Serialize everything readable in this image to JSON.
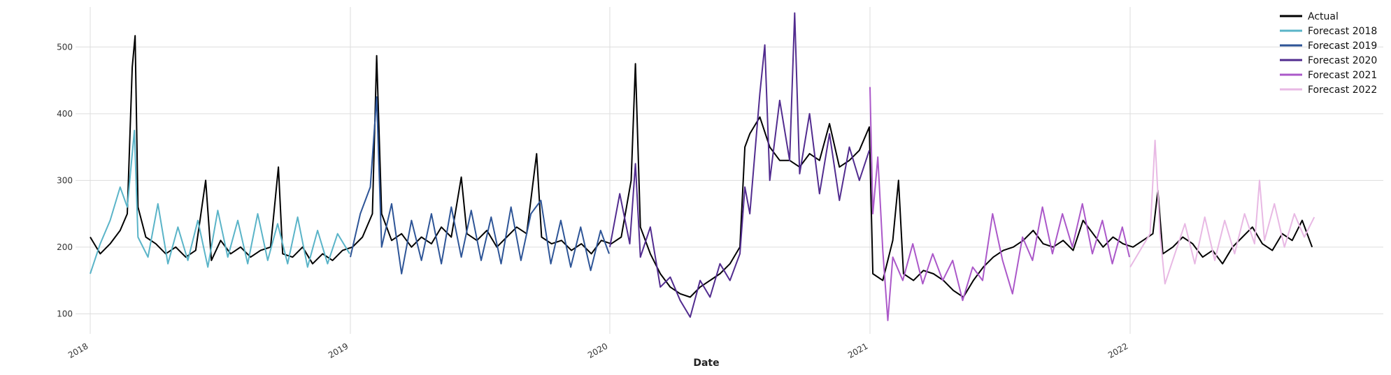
{
  "chart_data": {
    "type": "line",
    "title": "",
    "xlabel": "Date",
    "ylabel": "",
    "x_ticks": [
      "2018",
      "2019",
      "2020",
      "2021",
      "2022"
    ],
    "y_ticks": [
      100,
      200,
      300,
      400,
      500
    ],
    "xlim": [
      "2018-01-01",
      "2022-12-31"
    ],
    "ylim": [
      70,
      560
    ],
    "grid": true,
    "legend_position": "top-right",
    "series": [
      {
        "name": "Actual",
        "color": "#000000",
        "points": [
          [
            "2018-01-01",
            215
          ],
          [
            "2018-01-15",
            190
          ],
          [
            "2018-01-29",
            205
          ],
          [
            "2018-02-12",
            225
          ],
          [
            "2018-02-22",
            250
          ],
          [
            "2018-03-01",
            470
          ],
          [
            "2018-03-05",
            517
          ],
          [
            "2018-03-09",
            260
          ],
          [
            "2018-03-20",
            215
          ],
          [
            "2018-04-03",
            205
          ],
          [
            "2018-04-17",
            190
          ],
          [
            "2018-05-01",
            200
          ],
          [
            "2018-05-15",
            185
          ],
          [
            "2018-05-29",
            195
          ],
          [
            "2018-06-12",
            300
          ],
          [
            "2018-06-20",
            180
          ],
          [
            "2018-07-03",
            210
          ],
          [
            "2018-07-17",
            190
          ],
          [
            "2018-07-31",
            200
          ],
          [
            "2018-08-14",
            185
          ],
          [
            "2018-08-28",
            195
          ],
          [
            "2018-09-11",
            200
          ],
          [
            "2018-09-22",
            320
          ],
          [
            "2018-09-28",
            190
          ],
          [
            "2018-10-12",
            185
          ],
          [
            "2018-10-26",
            200
          ],
          [
            "2018-11-09",
            175
          ],
          [
            "2018-11-23",
            190
          ],
          [
            "2018-12-07",
            180
          ],
          [
            "2018-12-21",
            195
          ],
          [
            "2019-01-04",
            200
          ],
          [
            "2019-01-18",
            215
          ],
          [
            "2019-02-01",
            250
          ],
          [
            "2019-02-07",
            487
          ],
          [
            "2019-02-14",
            250
          ],
          [
            "2019-02-28",
            210
          ],
          [
            "2019-03-14",
            220
          ],
          [
            "2019-03-28",
            200
          ],
          [
            "2019-04-11",
            215
          ],
          [
            "2019-04-25",
            205
          ],
          [
            "2019-05-09",
            230
          ],
          [
            "2019-05-23",
            215
          ],
          [
            "2019-06-06",
            305
          ],
          [
            "2019-06-14",
            220
          ],
          [
            "2019-06-28",
            210
          ],
          [
            "2019-07-12",
            225
          ],
          [
            "2019-07-26",
            200
          ],
          [
            "2019-08-09",
            215
          ],
          [
            "2019-08-23",
            230
          ],
          [
            "2019-09-06",
            220
          ],
          [
            "2019-09-20",
            340
          ],
          [
            "2019-09-27",
            215
          ],
          [
            "2019-10-11",
            205
          ],
          [
            "2019-10-25",
            210
          ],
          [
            "2019-11-08",
            195
          ],
          [
            "2019-11-22",
            205
          ],
          [
            "2019-12-06",
            190
          ],
          [
            "2019-12-20",
            210
          ],
          [
            "2020-01-03",
            205
          ],
          [
            "2020-01-17",
            215
          ],
          [
            "2020-01-31",
            300
          ],
          [
            "2020-02-06",
            475
          ],
          [
            "2020-02-13",
            230
          ],
          [
            "2020-02-27",
            190
          ],
          [
            "2020-03-12",
            160
          ],
          [
            "2020-03-26",
            140
          ],
          [
            "2020-04-09",
            130
          ],
          [
            "2020-04-23",
            125
          ],
          [
            "2020-05-07",
            140
          ],
          [
            "2020-05-21",
            150
          ],
          [
            "2020-06-04",
            160
          ],
          [
            "2020-06-18",
            175
          ],
          [
            "2020-07-02",
            200
          ],
          [
            "2020-07-09",
            350
          ],
          [
            "2020-07-16",
            370
          ],
          [
            "2020-07-30",
            395
          ],
          [
            "2020-08-13",
            350
          ],
          [
            "2020-08-27",
            330
          ],
          [
            "2020-09-10",
            330
          ],
          [
            "2020-09-24",
            320
          ],
          [
            "2020-10-08",
            340
          ],
          [
            "2020-10-22",
            330
          ],
          [
            "2020-11-05",
            385
          ],
          [
            "2020-11-19",
            320
          ],
          [
            "2020-12-03",
            330
          ],
          [
            "2020-12-17",
            345
          ],
          [
            "2020-12-31",
            380
          ],
          [
            "2021-01-05",
            160
          ],
          [
            "2021-01-19",
            150
          ],
          [
            "2021-02-02",
            210
          ],
          [
            "2021-02-10",
            300
          ],
          [
            "2021-02-17",
            160
          ],
          [
            "2021-03-03",
            150
          ],
          [
            "2021-03-17",
            165
          ],
          [
            "2021-03-31",
            160
          ],
          [
            "2021-04-14",
            150
          ],
          [
            "2021-04-28",
            135
          ],
          [
            "2021-05-12",
            125
          ],
          [
            "2021-05-26",
            150
          ],
          [
            "2021-06-09",
            170
          ],
          [
            "2021-06-23",
            185
          ],
          [
            "2021-07-07",
            195
          ],
          [
            "2021-07-21",
            200
          ],
          [
            "2021-08-04",
            210
          ],
          [
            "2021-08-18",
            225
          ],
          [
            "2021-09-01",
            205
          ],
          [
            "2021-09-15",
            200
          ],
          [
            "2021-09-29",
            210
          ],
          [
            "2021-10-13",
            195
          ],
          [
            "2021-10-27",
            240
          ],
          [
            "2021-11-10",
            220
          ],
          [
            "2021-11-24",
            200
          ],
          [
            "2021-12-08",
            215
          ],
          [
            "2021-12-22",
            205
          ],
          [
            "2022-01-05",
            200
          ],
          [
            "2022-01-19",
            210
          ],
          [
            "2022-02-02",
            220
          ],
          [
            "2022-02-09",
            285
          ],
          [
            "2022-02-16",
            190
          ],
          [
            "2022-03-02",
            200
          ],
          [
            "2022-03-16",
            215
          ],
          [
            "2022-03-30",
            205
          ],
          [
            "2022-04-13",
            185
          ],
          [
            "2022-04-27",
            195
          ],
          [
            "2022-05-11",
            175
          ],
          [
            "2022-05-25",
            200
          ],
          [
            "2022-06-08",
            215
          ],
          [
            "2022-06-22",
            230
          ],
          [
            "2022-07-06",
            205
          ],
          [
            "2022-07-20",
            195
          ],
          [
            "2022-08-03",
            220
          ],
          [
            "2022-08-17",
            210
          ],
          [
            "2022-08-31",
            240
          ],
          [
            "2022-09-14",
            200
          ]
        ]
      },
      {
        "name": "Forecast 2018",
        "color": "#5ab4c8",
        "points": [
          [
            "2018-01-01",
            160
          ],
          [
            "2018-01-15",
            205
          ],
          [
            "2018-01-29",
            240
          ],
          [
            "2018-02-12",
            290
          ],
          [
            "2018-02-22",
            260
          ],
          [
            "2018-03-04",
            375
          ],
          [
            "2018-03-09",
            215
          ],
          [
            "2018-03-23",
            185
          ],
          [
            "2018-04-06",
            265
          ],
          [
            "2018-04-20",
            175
          ],
          [
            "2018-05-04",
            230
          ],
          [
            "2018-05-18",
            180
          ],
          [
            "2018-06-01",
            240
          ],
          [
            "2018-06-15",
            170
          ],
          [
            "2018-06-29",
            255
          ],
          [
            "2018-07-13",
            185
          ],
          [
            "2018-07-27",
            240
          ],
          [
            "2018-08-10",
            175
          ],
          [
            "2018-08-24",
            250
          ],
          [
            "2018-09-07",
            180
          ],
          [
            "2018-09-21",
            235
          ],
          [
            "2018-10-05",
            175
          ],
          [
            "2018-10-19",
            245
          ],
          [
            "2018-11-02",
            170
          ],
          [
            "2018-11-16",
            225
          ],
          [
            "2018-11-30",
            175
          ],
          [
            "2018-12-14",
            220
          ],
          [
            "2018-12-31",
            190
          ]
        ]
      },
      {
        "name": "Forecast 2019",
        "color": "#2e5597",
        "points": [
          [
            "2019-01-01",
            185
          ],
          [
            "2019-01-15",
            250
          ],
          [
            "2019-01-29",
            290
          ],
          [
            "2019-02-07",
            425
          ],
          [
            "2019-02-14",
            200
          ],
          [
            "2019-02-28",
            265
          ],
          [
            "2019-03-14",
            160
          ],
          [
            "2019-03-28",
            240
          ],
          [
            "2019-04-11",
            180
          ],
          [
            "2019-04-25",
            250
          ],
          [
            "2019-05-09",
            175
          ],
          [
            "2019-05-23",
            260
          ],
          [
            "2019-06-06",
            185
          ],
          [
            "2019-06-20",
            255
          ],
          [
            "2019-07-04",
            180
          ],
          [
            "2019-07-18",
            245
          ],
          [
            "2019-08-01",
            175
          ],
          [
            "2019-08-15",
            260
          ],
          [
            "2019-08-29",
            180
          ],
          [
            "2019-09-12",
            250
          ],
          [
            "2019-09-26",
            270
          ],
          [
            "2019-10-10",
            175
          ],
          [
            "2019-10-24",
            240
          ],
          [
            "2019-11-07",
            170
          ],
          [
            "2019-11-21",
            230
          ],
          [
            "2019-12-05",
            165
          ],
          [
            "2019-12-19",
            225
          ],
          [
            "2019-12-31",
            190
          ]
        ]
      },
      {
        "name": "Forecast 2020",
        "color": "#522c8f",
        "points": [
          [
            "2020-01-01",
            200
          ],
          [
            "2020-01-15",
            280
          ],
          [
            "2020-01-29",
            205
          ],
          [
            "2020-02-06",
            325
          ],
          [
            "2020-02-13",
            185
          ],
          [
            "2020-02-27",
            230
          ],
          [
            "2020-03-12",
            140
          ],
          [
            "2020-03-26",
            155
          ],
          [
            "2020-04-09",
            120
          ],
          [
            "2020-04-23",
            95
          ],
          [
            "2020-05-07",
            150
          ],
          [
            "2020-05-21",
            125
          ],
          [
            "2020-06-04",
            175
          ],
          [
            "2020-06-18",
            150
          ],
          [
            "2020-07-02",
            190
          ],
          [
            "2020-07-09",
            290
          ],
          [
            "2020-07-16",
            250
          ],
          [
            "2020-07-30",
            430
          ],
          [
            "2020-08-06",
            503
          ],
          [
            "2020-08-13",
            300
          ],
          [
            "2020-08-27",
            420
          ],
          [
            "2020-09-10",
            330
          ],
          [
            "2020-09-17",
            551
          ],
          [
            "2020-09-24",
            310
          ],
          [
            "2020-10-08",
            400
          ],
          [
            "2020-10-22",
            280
          ],
          [
            "2020-11-05",
            370
          ],
          [
            "2020-11-19",
            270
          ],
          [
            "2020-12-03",
            350
          ],
          [
            "2020-12-17",
            300
          ],
          [
            "2020-12-31",
            345
          ]
        ]
      },
      {
        "name": "Forecast 2021",
        "color": "#ab58c9",
        "points": [
          [
            "2021-01-01",
            440
          ],
          [
            "2021-01-05",
            250
          ],
          [
            "2021-01-12",
            335
          ],
          [
            "2021-01-19",
            195
          ],
          [
            "2021-01-26",
            90
          ],
          [
            "2021-02-02",
            185
          ],
          [
            "2021-02-16",
            150
          ],
          [
            "2021-03-02",
            205
          ],
          [
            "2021-03-16",
            145
          ],
          [
            "2021-03-30",
            190
          ],
          [
            "2021-04-13",
            150
          ],
          [
            "2021-04-27",
            180
          ],
          [
            "2021-05-11",
            120
          ],
          [
            "2021-05-25",
            170
          ],
          [
            "2021-06-08",
            150
          ],
          [
            "2021-06-22",
            250
          ],
          [
            "2021-07-06",
            180
          ],
          [
            "2021-07-20",
            130
          ],
          [
            "2021-08-03",
            215
          ],
          [
            "2021-08-17",
            180
          ],
          [
            "2021-08-31",
            260
          ],
          [
            "2021-09-14",
            190
          ],
          [
            "2021-09-28",
            250
          ],
          [
            "2021-10-12",
            200
          ],
          [
            "2021-10-26",
            265
          ],
          [
            "2021-11-09",
            190
          ],
          [
            "2021-11-23",
            240
          ],
          [
            "2021-12-07",
            175
          ],
          [
            "2021-12-21",
            230
          ],
          [
            "2021-12-31",
            185
          ]
        ]
      },
      {
        "name": "Forecast 2022",
        "color": "#e8b9e4",
        "points": [
          [
            "2022-01-01",
            170
          ],
          [
            "2022-01-15",
            195
          ],
          [
            "2022-01-29",
            220
          ],
          [
            "2022-02-05",
            360
          ],
          [
            "2022-02-12",
            220
          ],
          [
            "2022-02-19",
            145
          ],
          [
            "2022-03-05",
            190
          ],
          [
            "2022-03-19",
            235
          ],
          [
            "2022-04-02",
            175
          ],
          [
            "2022-04-16",
            245
          ],
          [
            "2022-04-30",
            180
          ],
          [
            "2022-05-14",
            240
          ],
          [
            "2022-05-28",
            190
          ],
          [
            "2022-06-11",
            250
          ],
          [
            "2022-06-25",
            205
          ],
          [
            "2022-07-02",
            300
          ],
          [
            "2022-07-09",
            210
          ],
          [
            "2022-07-23",
            265
          ],
          [
            "2022-08-06",
            200
          ],
          [
            "2022-08-20",
            250
          ],
          [
            "2022-09-03",
            215
          ],
          [
            "2022-09-17",
            245
          ]
        ]
      }
    ]
  }
}
